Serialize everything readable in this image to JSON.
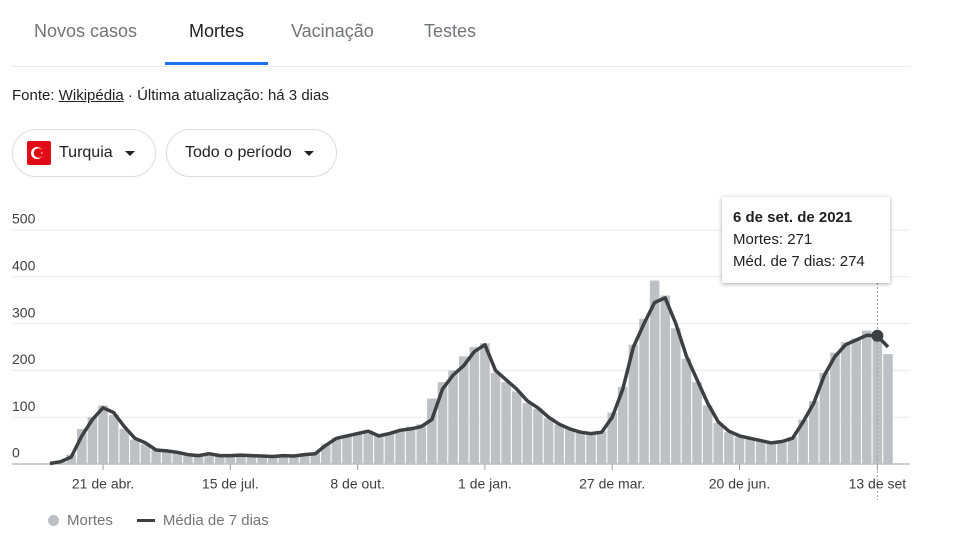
{
  "tabs": [
    "Novos casos",
    "Mortes",
    "Vacinação",
    "Testes"
  ],
  "source": {
    "prefix": "Fonte:",
    "link": "Wikipédia",
    "suffix": "· Última atualização: há 3 dias"
  },
  "filters": [
    "Turquia",
    "Todo o período"
  ],
  "tooltip": {
    "title": "6 de set. de 2021",
    "rows": [
      {
        "label": "Mortes:",
        "value": 271
      },
      {
        "label": "Méd. de 7 dias:",
        "value": 274
      }
    ]
  },
  "chart_data": {
    "type": "bar",
    "categories": [
      null,
      null,
      null,
      null,
      null,
      "21 de abr.",
      null,
      null,
      null,
      null,
      null,
      null,
      null,
      null,
      null,
      null,
      null,
      "15 de jul.",
      null,
      null,
      null,
      null,
      null,
      null,
      null,
      null,
      null,
      null,
      null,
      "8 de out.",
      null,
      null,
      null,
      null,
      null,
      null,
      null,
      null,
      null,
      null,
      null,
      "1 de jan.",
      null,
      null,
      null,
      null,
      null,
      null,
      null,
      null,
      null,
      null,
      null,
      "27 de mar.",
      null,
      null,
      null,
      null,
      null,
      null,
      null,
      null,
      null,
      null,
      null,
      "20 de jun.",
      null,
      null,
      null,
      null,
      null,
      null,
      null,
      null,
      null,
      null,
      null,
      null,
      "13 de set",
      null
    ],
    "series": [
      {
        "name": "Mortes",
        "type": "bar",
        "color": "#bdc1c6",
        "values": [
          2,
          7,
          20,
          75,
          100,
          125,
          105,
          75,
          52,
          42,
          30,
          27,
          24,
          19,
          18,
          21,
          17,
          18,
          19,
          17,
          16,
          16,
          18,
          17,
          21,
          24,
          42,
          56,
          62,
          66,
          72,
          62,
          66,
          73,
          80,
          85,
          140,
          175,
          200,
          230,
          250,
          258,
          195,
          175,
          155,
          130,
          118,
          98,
          84,
          74,
          67,
          64,
          70,
          110,
          165,
          255,
          310,
          392,
          360,
          290,
          225,
          175,
          125,
          88,
          68,
          58,
          53,
          48,
          44,
          50,
          58,
          95,
          135,
          195,
          238,
          260,
          268,
          285,
          271,
          235
        ]
      },
      {
        "name": "Média de 7 dias",
        "type": "line",
        "color": "#3c4043",
        "values": [
          1,
          5,
          15,
          60,
          95,
          120,
          110,
          80,
          55,
          45,
          30,
          28,
          25,
          20,
          18,
          22,
          18,
          18,
          19,
          18,
          17,
          16,
          18,
          17,
          20,
          22,
          40,
          55,
          60,
          65,
          70,
          60,
          65,
          72,
          75,
          80,
          95,
          160,
          190,
          210,
          240,
          255,
          200,
          180,
          160,
          135,
          120,
          100,
          85,
          75,
          68,
          65,
          68,
          100,
          160,
          250,
          300,
          345,
          355,
          300,
          230,
          180,
          130,
          90,
          70,
          60,
          55,
          50,
          45,
          48,
          55,
          90,
          130,
          190,
          230,
          255,
          265,
          275,
          274,
          250
        ]
      }
    ],
    "ylim": [
      0,
      500
    ],
    "yticks": [
      0,
      100,
      200,
      300,
      400,
      500
    ],
    "grid": true
  }
}
